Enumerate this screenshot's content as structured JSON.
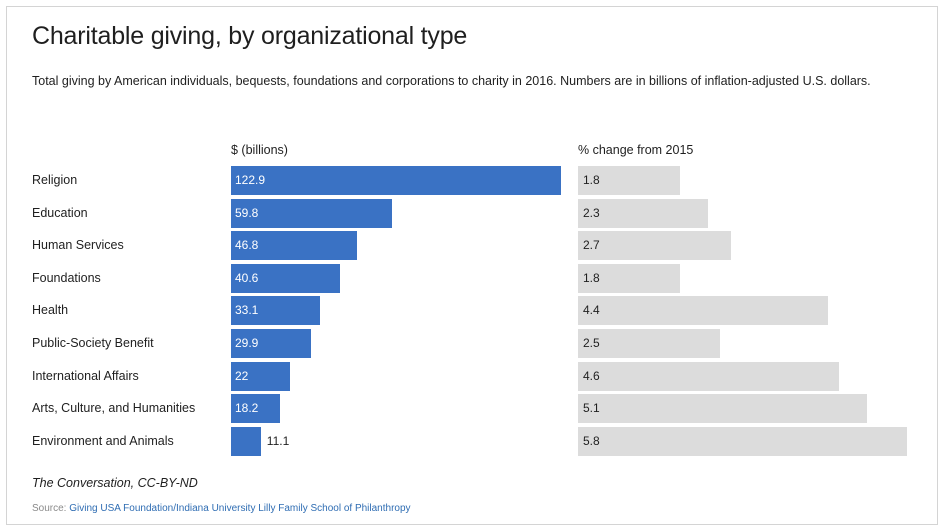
{
  "header": {
    "title": "Charitable giving, by organizational type",
    "subtitle": "Total giving by American individuals, bequests, foundations and corporations to charity in 2016. Numbers are in billions of inflation-adjusted U.S. dollars."
  },
  "columns": {
    "amount_heading": "$ (billions)",
    "change_heading": "% change from 2015"
  },
  "footer": {
    "credit": "The Conversation, CC-BY-ND",
    "source_label": "Source:",
    "source_text": "Giving USA Foundation/Indiana University Lilly Family School of Philanthropy"
  },
  "colors": {
    "amount_bar": "#3a72c4",
    "change_bar": "#dcdcdc"
  },
  "chart_data": [
    {
      "type": "bar",
      "orientation": "horizontal",
      "categories": [
        "Religion",
        "Education",
        "Human Services",
        "Foundations",
        "Health",
        "Public-Society Benefit",
        "International Affairs",
        "Arts, Culture, and Humanities",
        "Environment and Animals"
      ],
      "values": [
        122.9,
        59.8,
        46.8,
        40.6,
        33.1,
        29.9,
        22,
        18.2,
        11.1
      ],
      "value_labels": [
        "122.9",
        "59.8",
        "46.8",
        "40.6",
        "33.1",
        "29.9",
        "22",
        "18.2",
        "11.1"
      ],
      "xlabel": "$ (billions)",
      "xlim": [
        0,
        122.9
      ],
      "grid": false
    },
    {
      "type": "bar",
      "orientation": "horizontal",
      "categories": [
        "Religion",
        "Education",
        "Human Services",
        "Foundations",
        "Health",
        "Public-Society Benefit",
        "International Affairs",
        "Arts, Culture, and Humanities",
        "Environment and Animals"
      ],
      "values": [
        1.8,
        2.3,
        2.7,
        1.8,
        4.4,
        2.5,
        4.6,
        5.1,
        5.8
      ],
      "value_labels": [
        "1.8",
        "2.3",
        "2.7",
        "1.8",
        "4.4",
        "2.5",
        "4.6",
        "5.1",
        "5.8"
      ],
      "xlabel": "% change from 2015",
      "xlim": [
        0,
        5.8
      ],
      "grid": false
    }
  ]
}
